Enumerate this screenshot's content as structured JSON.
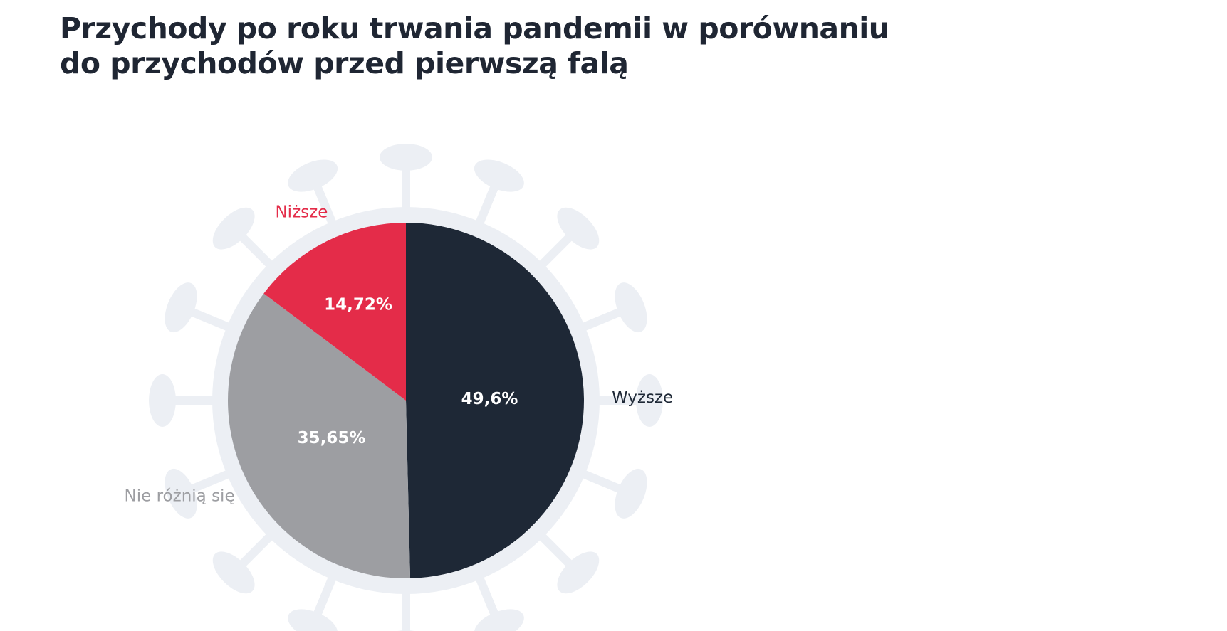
{
  "chart_data": {
    "type": "pie",
    "title_lines": [
      "Przychody po roku trwania pandemii w porównaniu",
      "do przychodów przed pierwszą falą"
    ],
    "slices": [
      {
        "label": "Wyższe",
        "value": 49.6,
        "value_label": "49,6%",
        "color": "#1e2836",
        "label_color": "#1e2836"
      },
      {
        "label": "Nie różnią się",
        "value": 35.65,
        "value_label": "35,65%",
        "color": "#9d9ea2",
        "label_color": "#9d9ea2"
      },
      {
        "label": "Niższe",
        "value": 14.72,
        "value_label": "14,72%",
        "color": "#e42c49",
        "label_color": "#e42c49"
      }
    ],
    "start": "12 o'clock, clockwise",
    "background_motif": "virus-icon",
    "background_color": "#eceff4"
  }
}
